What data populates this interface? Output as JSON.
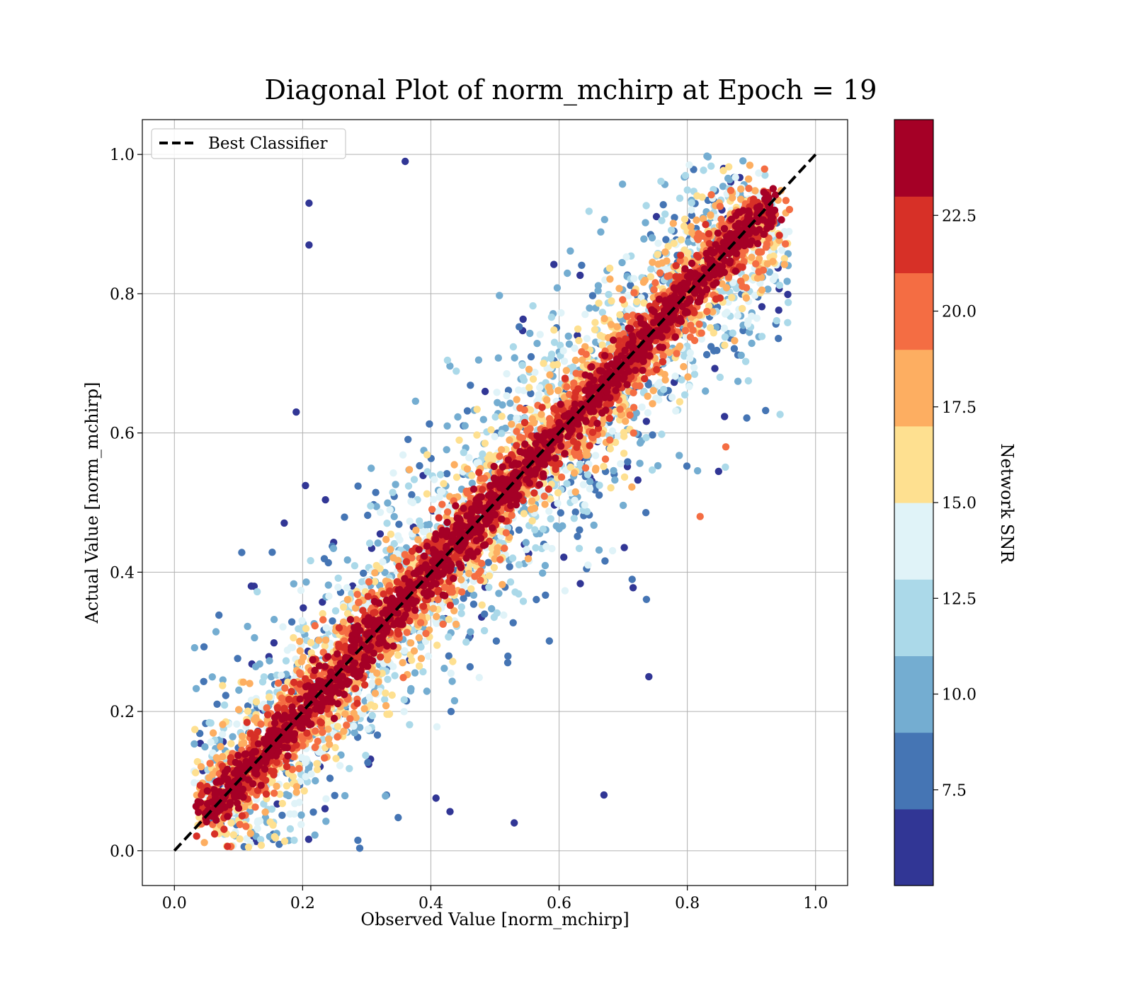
{
  "chart_data": {
    "type": "scatter",
    "title": "Diagonal Plot of norm_mchirp at Epoch = 19",
    "xlabel": "Observed Value [norm_mchirp]",
    "ylabel": "Actual Value [norm_mchirp]",
    "xlim": [
      -0.05,
      1.05
    ],
    "ylim": [
      -0.05,
      1.05
    ],
    "x_ticks": [
      "0.0",
      "0.2",
      "0.4",
      "0.6",
      "0.8",
      "1.0"
    ],
    "y_ticks": [
      "0.0",
      "0.2",
      "0.4",
      "0.6",
      "0.8",
      "1.0"
    ],
    "grid": true,
    "legend": {
      "position": "top-left",
      "entries": [
        "Best Classifier"
      ]
    },
    "reference_line": {
      "name": "Best Classifier",
      "style": "dashed",
      "color": "#000000",
      "x": [
        0,
        1
      ],
      "y": [
        0,
        1
      ]
    },
    "colorbar": {
      "label": "Network SNR",
      "range": [
        5,
        25
      ],
      "ticks": [
        "7.5",
        "10.0",
        "12.5",
        "15.0",
        "17.5",
        "20.0",
        "22.5"
      ],
      "bins": 10,
      "colors": [
        "#313695",
        "#4575b4",
        "#74add1",
        "#abd9e9",
        "#e0f3f8",
        "#fee090",
        "#fdae61",
        "#f46d43",
        "#d73027",
        "#a50026"
      ]
    },
    "point_distribution": {
      "count": 7000,
      "x_range": [
        0.03,
        0.96
      ],
      "y_range": [
        0.0,
        1.0
      ],
      "description_source": "colored by Network SNR; scatter around y = x tightens with higher SNR"
    },
    "notable_points": [
      {
        "x": 0.21,
        "y": 0.93,
        "snr": 6
      },
      {
        "x": 0.21,
        "y": 0.87,
        "snr": 6
      },
      {
        "x": 0.36,
        "y": 0.99,
        "snr": 6
      },
      {
        "x": 0.19,
        "y": 0.63,
        "snr": 6
      },
      {
        "x": 0.12,
        "y": 0.38,
        "snr": 6
      },
      {
        "x": 0.74,
        "y": 0.25,
        "snr": 6
      },
      {
        "x": 0.53,
        "y": 0.04,
        "snr": 6
      },
      {
        "x": 0.67,
        "y": 0.08,
        "snr": 6
      },
      {
        "x": 0.82,
        "y": 0.48,
        "snr": 20
      },
      {
        "x": 0.86,
        "y": 0.58,
        "snr": 20
      }
    ]
  }
}
